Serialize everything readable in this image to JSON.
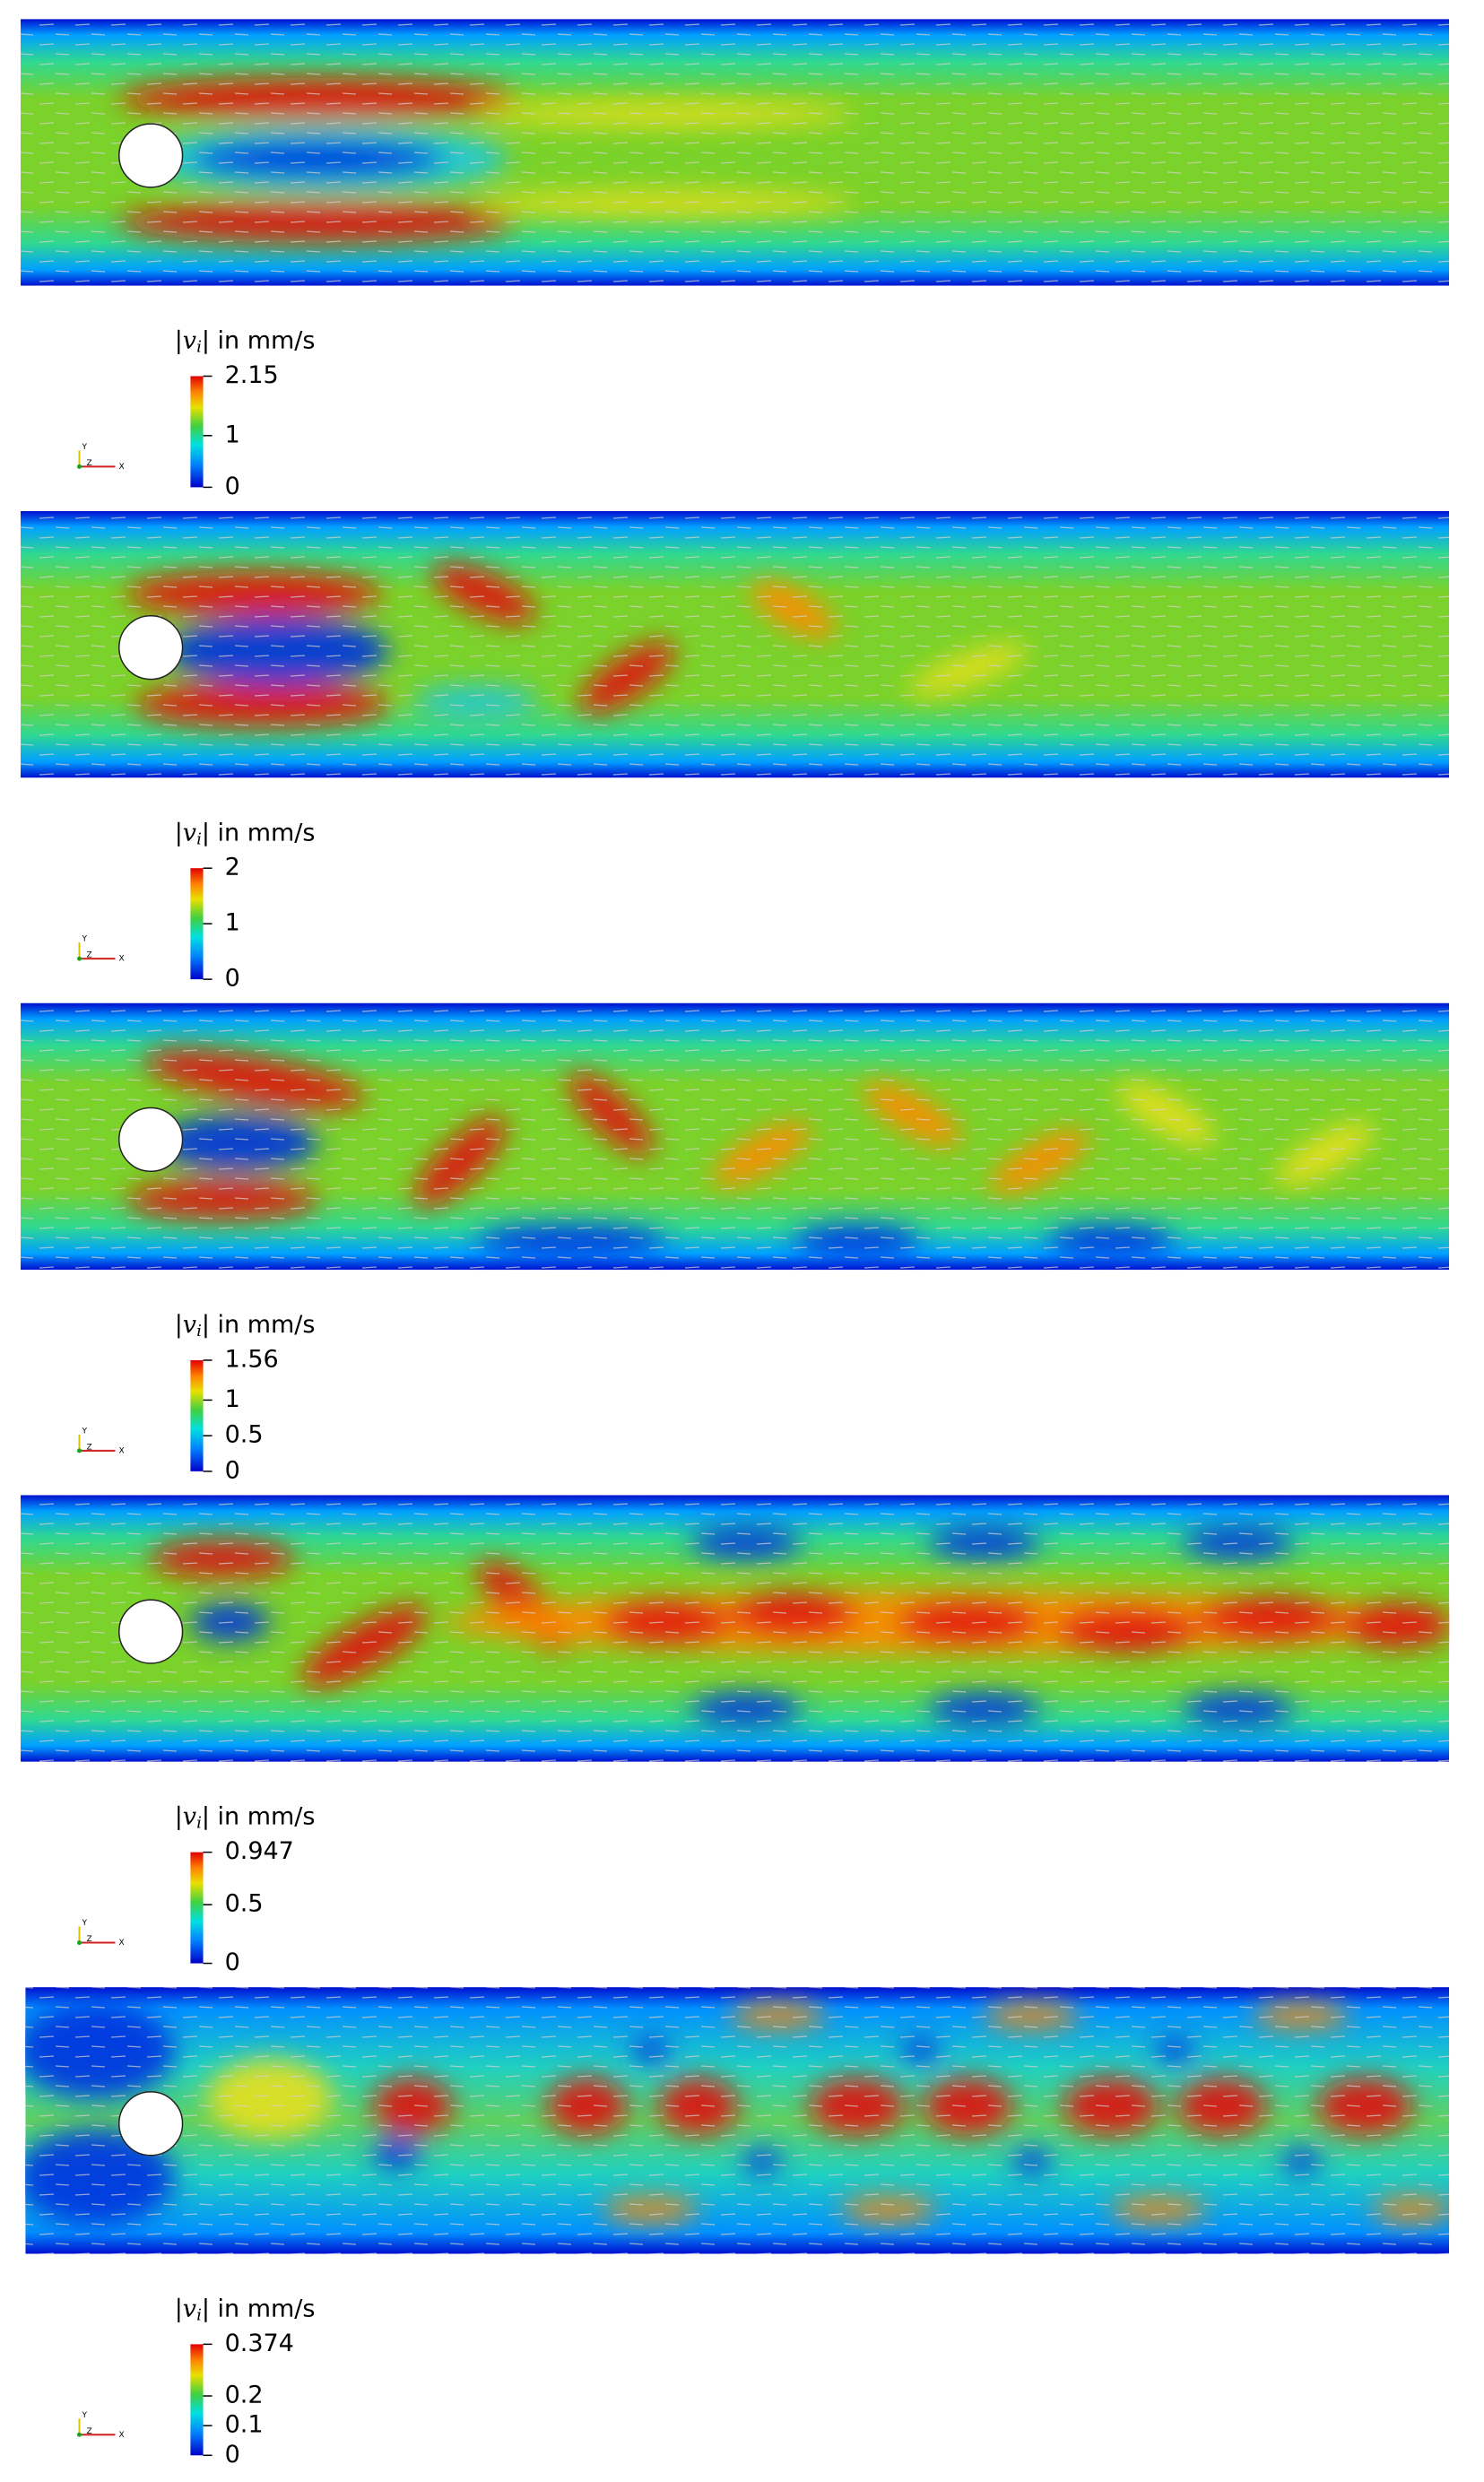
{
  "axes_labels": [
    "Y",
    "Z",
    "X"
  ],
  "panels": [
    {
      "colorbar": {
        "symbol": "|v",
        "index": "i",
        "rest": "| in mm/s",
        "clim": [
          0,
          2.15
        ],
        "ticks": [
          0,
          1,
          2.15
        ]
      }
    },
    {
      "colorbar": {
        "symbol": "|v",
        "index": "i",
        "rest": "| in mm/s",
        "clim": [
          0,
          2
        ],
        "ticks": [
          0,
          1,
          2
        ]
      }
    },
    {
      "colorbar": {
        "symbol": "|v",
        "index": "i",
        "rest": "| in mm/s",
        "clim": [
          0,
          1.56
        ],
        "ticks": [
          0,
          0.5,
          1,
          1.56
        ]
      }
    },
    {
      "colorbar": {
        "symbol": "|v",
        "index": "i",
        "rest": "| in mm/s",
        "clim": [
          0,
          0.947
        ],
        "ticks": [
          0,
          0.5,
          0.947
        ]
      }
    },
    {
      "colorbar": {
        "symbol": "|v",
        "index": "i",
        "rest": "| in mm/s",
        "clim": [
          0,
          0.374
        ],
        "ticks": [
          0,
          0.1,
          0.2,
          0.374
        ]
      }
    }
  ]
}
